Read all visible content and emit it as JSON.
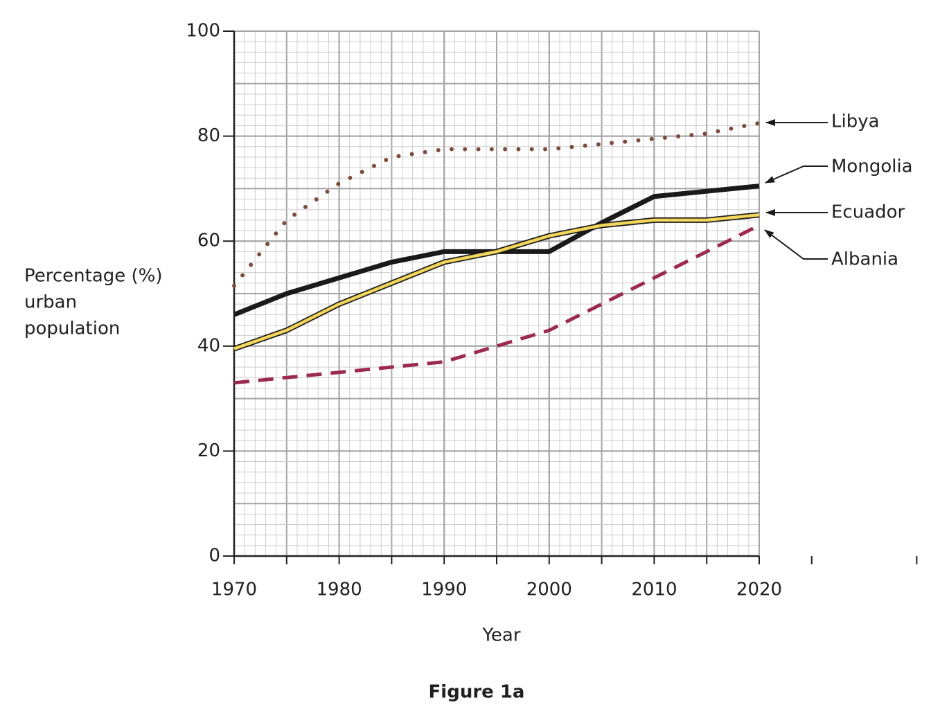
{
  "chart_data": {
    "type": "line",
    "caption": "Figure 1a",
    "x_label": "Year",
    "y_label": [
      "Percentage (%)",
      "urban",
      "population"
    ],
    "x": [
      1970,
      1975,
      1980,
      1985,
      1990,
      1995,
      2000,
      2005,
      2010,
      2015,
      2020
    ],
    "series": [
      {
        "name": "Libya",
        "color": "#7b4b3c",
        "style": "dotted",
        "values": [
          51.5,
          64,
          71,
          76,
          77.5,
          77.5,
          77.5,
          78.5,
          79.5,
          80.5,
          82.5
        ]
      },
      {
        "name": "Mongolia",
        "color": "#1a1a1a",
        "style": "solid",
        "values": [
          46,
          50,
          53,
          56,
          58,
          58,
          58,
          63.5,
          68.5,
          69.5,
          70.5
        ]
      },
      {
        "name": "Ecuador",
        "color": "#f2d55b",
        "style": "outlined",
        "values": [
          39.5,
          43,
          48,
          52,
          56,
          58,
          61,
          63,
          64,
          64,
          65
        ]
      },
      {
        "name": "Albania",
        "color": "#9b2a4e",
        "style": "dashed",
        "values": [
          33,
          34,
          35,
          36,
          37,
          40,
          43,
          48,
          53,
          58,
          63
        ]
      }
    ],
    "xlim": [
      1970,
      2020
    ],
    "xticks": [
      1970,
      1980,
      1990,
      2000,
      2010,
      2020
    ],
    "ylim": [
      0,
      100
    ],
    "yticks": [
      0,
      20,
      40,
      60,
      80,
      100
    ],
    "grid": true
  }
}
